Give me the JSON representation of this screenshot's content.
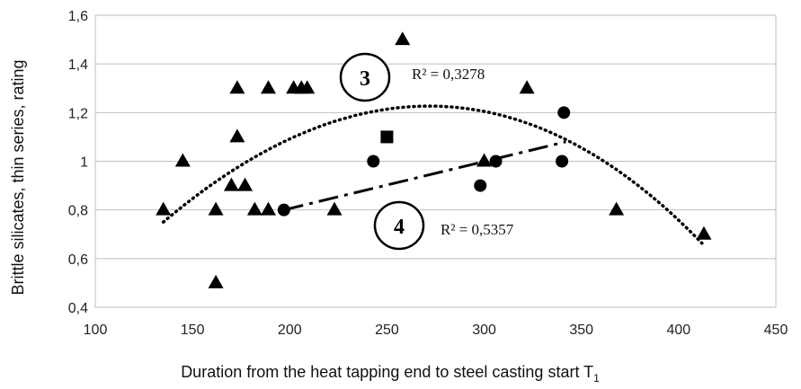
{
  "chart_data": {
    "type": "scatter",
    "title": "",
    "xlabel": "Duration from the heat tapping end to steel casting start T",
    "xlabel_subscript": "1",
    "ylabel": "Brittle silicates, thin series, rating",
    "xlim": [
      100,
      450
    ],
    "ylim": [
      0.4,
      1.6
    ],
    "x_ticks": [
      "100",
      "150",
      "200",
      "250",
      "300",
      "350",
      "400",
      "450"
    ],
    "y_ticks": [
      "0,4",
      "0,6",
      "0,8",
      "1",
      "1,2",
      "1,4",
      "1,6"
    ],
    "grid": "horizontal",
    "series": [
      {
        "marker": "triangle",
        "color": "#000000",
        "points": [
          [
            135,
            0.8
          ],
          [
            145,
            1.0
          ],
          [
            162,
            0.8
          ],
          [
            162,
            0.5
          ],
          [
            170,
            0.9
          ],
          [
            173,
            1.3
          ],
          [
            173,
            1.1
          ],
          [
            177,
            0.9
          ],
          [
            182,
            0.8
          ],
          [
            189,
            0.8
          ],
          [
            189,
            1.3
          ],
          [
            202,
            1.3
          ],
          [
            206,
            1.3
          ],
          [
            209,
            1.3
          ],
          [
            223,
            0.8
          ],
          [
            258,
            1.5
          ],
          [
            300,
            1.0
          ],
          [
            322,
            1.3
          ],
          [
            368,
            0.8
          ],
          [
            413,
            0.7
          ]
        ]
      },
      {
        "marker": "circle",
        "color": "#000000",
        "points": [
          [
            197,
            0.8
          ],
          [
            243,
            1.0
          ],
          [
            298,
            0.9
          ],
          [
            306,
            1.0
          ],
          [
            340,
            1.0
          ],
          [
            341,
            1.2
          ]
        ]
      },
      {
        "marker": "square",
        "color": "#000000",
        "points": [
          [
            250,
            1.1
          ]
        ]
      }
    ],
    "trendlines": [
      {
        "label": "3",
        "type": "polynomial",
        "style": "dotted",
        "r2": "R² = 0,3278",
        "x_range": [
          135,
          412
        ],
        "through": [
          [
            135,
            0.74
          ],
          [
            150,
            0.86
          ],
          [
            200,
            1.09
          ],
          [
            250,
            1.21
          ],
          [
            275,
            1.23
          ],
          [
            300,
            1.2
          ],
          [
            350,
            1.06
          ],
          [
            400,
            0.76
          ],
          [
            412,
            0.66
          ]
        ]
      },
      {
        "label": "4",
        "type": "linear",
        "style": "dash-dot",
        "r2": "R² = 0,5357",
        "x_range": [
          197,
          342
        ],
        "through": [
          [
            197,
            0.8
          ],
          [
            342,
            1.08
          ]
        ]
      }
    ]
  }
}
